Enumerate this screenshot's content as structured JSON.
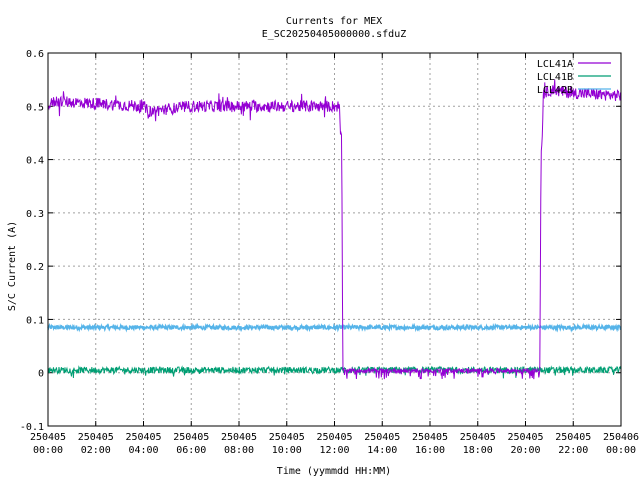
{
  "chart_data": {
    "type": "line",
    "title": "Currents for MEX",
    "subtitle": "E_SC20250405000000.sfduZ",
    "xlabel": "Time (yymmdd HH:MM)",
    "ylabel": "S/C Current (A)",
    "ylim": [
      -0.1,
      0.6
    ],
    "yticks": [
      "-0.1",
      "0",
      "0.1",
      "0.2",
      "0.3",
      "0.4",
      "0.5",
      "0.6"
    ],
    "xlim_hours": [
      0,
      24
    ],
    "xticks": [
      {
        "date": "250405",
        "time": "00:00"
      },
      {
        "date": "250405",
        "time": "02:00"
      },
      {
        "date": "250405",
        "time": "04:00"
      },
      {
        "date": "250405",
        "time": "06:00"
      },
      {
        "date": "250405",
        "time": "08:00"
      },
      {
        "date": "250405",
        "time": "10:00"
      },
      {
        "date": "250405",
        "time": "12:00"
      },
      {
        "date": "250405",
        "time": "14:00"
      },
      {
        "date": "250405",
        "time": "16:00"
      },
      {
        "date": "250405",
        "time": "18:00"
      },
      {
        "date": "250405",
        "time": "20:00"
      },
      {
        "date": "250405",
        "time": "22:00"
      },
      {
        "date": "250406",
        "time": "00:00"
      }
    ],
    "grid": true,
    "legend_position": "top-right",
    "series": [
      {
        "name": "LCL41A",
        "color": "#9400d3",
        "x_hours": [
          0,
          0.3,
          2.0,
          4.0,
          4.2,
          6.0,
          8.0,
          10.0,
          12.0,
          12.2,
          12.25,
          12.3,
          12.35,
          12.4,
          14.0,
          16.0,
          18.0,
          20.0,
          20.6,
          20.65,
          20.7,
          20.75,
          21.0,
          22.0,
          24.0
        ],
        "values": [
          0.5,
          0.51,
          0.505,
          0.5,
          0.49,
          0.5,
          0.5,
          0.5,
          0.5,
          0.5,
          0.45,
          0.44,
          0.0,
          0.0,
          0.0,
          0.0,
          0.0,
          0.0,
          0.0,
          0.42,
          0.44,
          0.52,
          0.53,
          0.525,
          0.52
        ]
      },
      {
        "name": "LCL41B",
        "color": "#009e73",
        "x_hours": [
          0,
          24
        ],
        "values": [
          0.005,
          0.005
        ]
      },
      {
        "name": "LCL42B",
        "color": "#56b4e9",
        "x_hours": [
          0,
          24
        ],
        "values": [
          0.085,
          0.085
        ]
      }
    ]
  }
}
